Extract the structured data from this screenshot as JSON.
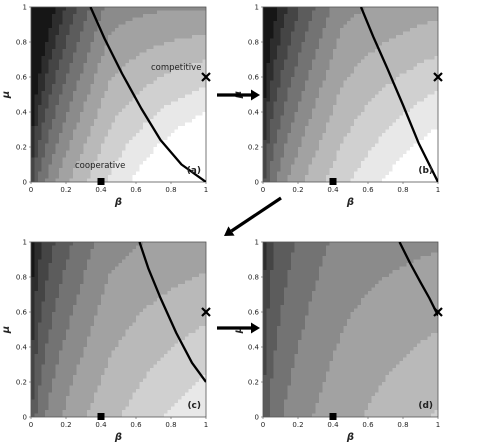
{
  "figure": {
    "panels": [
      {
        "id": "a",
        "label": "(a)",
        "annotations": [
          "competitive",
          "cooperative"
        ]
      },
      {
        "id": "b",
        "label": "(b)",
        "annotations": []
      },
      {
        "id": "c",
        "label": "(c)",
        "annotations": []
      },
      {
        "id": "d",
        "label": "(d)",
        "annotations": []
      }
    ],
    "xlabel": "β",
    "ylabel": "μ",
    "xticks": [
      "0",
      "0.2",
      "0.4",
      "0.6",
      "0.8",
      "1"
    ],
    "yticks": [
      "0",
      "0.2",
      "0.4",
      "0.6",
      "0.8",
      "1"
    ],
    "marker_square": {
      "x": 0.4,
      "y": 0
    },
    "marker_cross": {
      "x": 1,
      "y": 0.6
    }
  }
}
